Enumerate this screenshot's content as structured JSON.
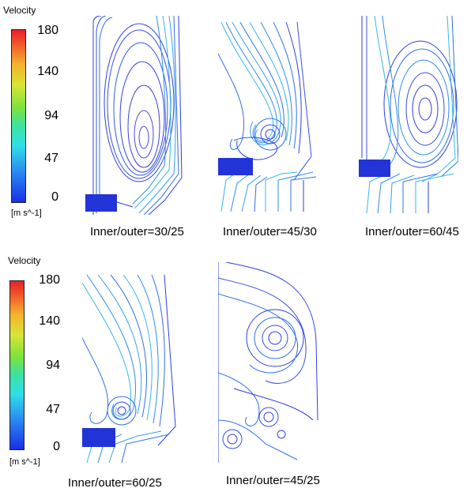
{
  "legend": [
    {
      "title": "Velocity",
      "ticks": [
        "180",
        "140",
        "94",
        "47",
        "0"
      ],
      "unit": "[m s^-1]"
    },
    {
      "title": "Velocity",
      "ticks": [
        "180",
        "140",
        "94",
        "47",
        "0"
      ],
      "unit": "[m s^-1]"
    }
  ],
  "panels": [
    {
      "caption": "Inner/outer=30/25"
    },
    {
      "caption": "Inner/outer=45/30"
    },
    {
      "caption": "Inner/outer=60/45"
    },
    {
      "caption": "Inner/outer=60/25"
    },
    {
      "caption": "Inner/outer=45/25"
    }
  ],
  "colors": {
    "low": "#1a2fe6",
    "mid": "#2ee0e6",
    "high": "#e8202a",
    "streamline_dark": "#2f3fe0",
    "streamline_light": "#35b8ec"
  }
}
